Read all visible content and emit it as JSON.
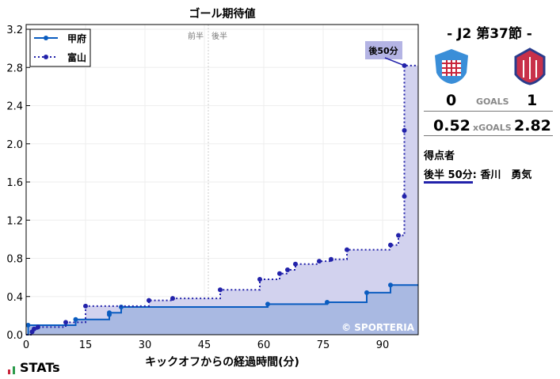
{
  "chart_data": {
    "type": "line",
    "title": "ゴール期待値",
    "xlabel": "キックオフからの経過時間(分)",
    "ylabel": "",
    "xlim": [
      0,
      99
    ],
    "ylim": [
      0,
      3.2
    ],
    "xticks": [
      0,
      15,
      30,
      45,
      60,
      75,
      90
    ],
    "yticks": [
      0.0,
      0.4,
      0.8,
      1.2,
      1.6,
      2.0,
      2.4,
      2.8,
      3.2
    ],
    "grid": true,
    "legend": "top-left",
    "half_line": {
      "x": 46,
      "labels": [
        "前半",
        "後半"
      ]
    },
    "annotation": {
      "text": "後50分",
      "x": 95.5,
      "y": 2.82
    },
    "watermark": "© SPORTERIA",
    "series": [
      {
        "name": "甲府",
        "style": "solid",
        "color": "#0a5cc0",
        "fill": "#a9b9e2",
        "x": [
          0.5,
          12.5,
          21,
          21,
          24,
          61,
          76,
          86,
          92
        ],
        "y": [
          0.1,
          0.16,
          0.21,
          0.23,
          0.29,
          0.32,
          0.34,
          0.44,
          0.52
        ]
      },
      {
        "name": "富山",
        "style": "dotted",
        "color": "#2222aa",
        "fill": "#d2d2ee",
        "x": [
          1.5,
          2,
          3,
          10,
          15,
          31,
          37,
          49,
          59,
          64,
          66,
          68,
          74,
          77,
          81,
          92,
          94,
          95.5,
          95.5,
          95.5
        ],
        "y": [
          0.03,
          0.06,
          0.08,
          0.13,
          0.3,
          0.36,
          0.38,
          0.47,
          0.58,
          0.64,
          0.68,
          0.74,
          0.77,
          0.79,
          0.89,
          0.94,
          1.04,
          1.45,
          2.14,
          2.82
        ]
      }
    ]
  },
  "side": {
    "round": "-  J2 第37節  -",
    "home_goals": "0",
    "away_goals": "1",
    "goals_label": "GOALS",
    "home_xg": "0.52",
    "away_xg": "2.82",
    "xg_label": "xGOALS",
    "scorers_title": "得点者",
    "scorer_time": "後半 50分",
    "scorer_name": ": 香川　勇気"
  },
  "brand": "STATs"
}
